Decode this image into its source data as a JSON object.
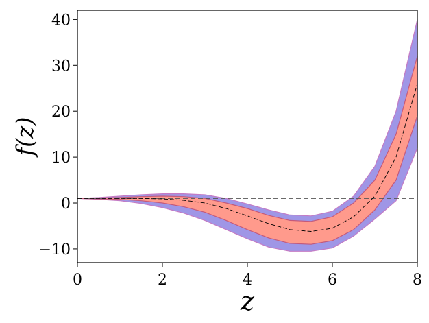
{
  "chart_data": {
    "type": "area",
    "xlabel": "z",
    "ylabel": "f(z)",
    "xlim": [
      0,
      8
    ],
    "ylim": [
      -13,
      42
    ],
    "x_ticks": [
      0,
      2,
      4,
      6,
      8
    ],
    "x_tick_labels": [
      "0",
      "2",
      "4",
      "6",
      "8"
    ],
    "y_ticks": [
      -10,
      0,
      10,
      20,
      30,
      40
    ],
    "y_tick_labels": [
      "−10",
      "0",
      "10",
      "20",
      "30",
      "40"
    ],
    "grid": false,
    "x": [
      0,
      0.5,
      1,
      1.5,
      2,
      2.5,
      3,
      3.5,
      4,
      4.5,
      5,
      5.5,
      6,
      6.5,
      7,
      7.5,
      8
    ],
    "series": [
      {
        "role": "median",
        "style": "dashed",
        "color": "#000000",
        "values": [
          1.0,
          1.0,
          1.0,
          1.0,
          0.9,
          0.6,
          0.0,
          -1.2,
          -2.8,
          -4.5,
          -5.8,
          -6.2,
          -5.5,
          -3.0,
          1.5,
          10.0,
          26.0
        ]
      },
      {
        "role": "band-1sigma",
        "color": "#ff9a8c",
        "lower": [
          1.0,
          0.9,
          0.8,
          0.5,
          0.0,
          -0.8,
          -2.0,
          -3.8,
          -5.8,
          -7.6,
          -8.8,
          -9.0,
          -8.2,
          -5.8,
          -1.5,
          5.0,
          19.0
        ],
        "upper": [
          1.0,
          1.1,
          1.2,
          1.4,
          1.5,
          1.4,
          1.0,
          0.0,
          -1.2,
          -2.7,
          -3.8,
          -4.0,
          -3.0,
          0.0,
          5.0,
          15.0,
          32.0
        ]
      },
      {
        "role": "band-2sigma",
        "color": "#9f96e6",
        "lower": [
          1.0,
          0.8,
          0.5,
          -0.1,
          -1.0,
          -2.2,
          -3.8,
          -5.8,
          -7.8,
          -9.6,
          -10.5,
          -10.5,
          -9.8,
          -7.2,
          -3.5,
          0.5,
          12.0
        ],
        "upper": [
          1.0,
          1.2,
          1.5,
          1.8,
          2.0,
          2.0,
          1.8,
          1.0,
          -0.2,
          -1.5,
          -2.6,
          -2.8,
          -1.8,
          1.5,
          8.0,
          20.0,
          40.0
        ]
      }
    ],
    "reference_line": {
      "y": 1.0,
      "style": "dashed",
      "color": "#555555"
    }
  }
}
